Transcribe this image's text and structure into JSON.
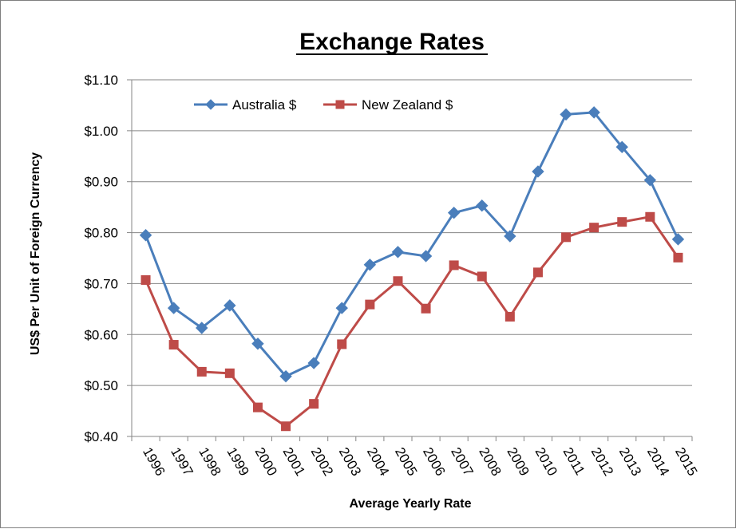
{
  "chart_data": {
    "type": "line",
    "title": "Exchange Rates",
    "xlabel": "Average Yearly Rate",
    "ylabel": "US$ Per Unit of Foreign Currency",
    "ylim": [
      0.4,
      1.1
    ],
    "yticks": [
      0.4,
      0.5,
      0.6,
      0.7,
      0.8,
      0.9,
      1.0,
      1.1
    ],
    "ytick_labels": [
      "$0.40",
      "$0.50",
      "$0.60",
      "$0.70",
      "$0.80",
      "$0.90",
      "$1.00",
      "$1.10"
    ],
    "grid": true,
    "legend_position": "top-left",
    "categories": [
      "1996",
      "1997",
      "1998",
      "1999",
      "2000",
      "2001",
      "2002",
      "2003",
      "2004",
      "2005",
      "2006",
      "2007",
      "2008",
      "2009",
      "2010",
      "2011",
      "2012",
      "2013",
      "2014",
      "2015"
    ],
    "series": [
      {
        "name": "Australia $",
        "color": "#4a7ebb",
        "marker": "diamond",
        "values": [
          0.795,
          0.652,
          0.613,
          0.657,
          0.582,
          0.518,
          0.544,
          0.652,
          0.737,
          0.762,
          0.754,
          0.839,
          0.853,
          0.793,
          0.92,
          1.032,
          1.036,
          0.968,
          0.903,
          0.787
        ]
      },
      {
        "name": "New Zealand $",
        "color": "#be4b48",
        "marker": "square",
        "values": [
          0.707,
          0.58,
          0.527,
          0.524,
          0.457,
          0.42,
          0.464,
          0.581,
          0.659,
          0.705,
          0.651,
          0.736,
          0.714,
          0.635,
          0.722,
          0.791,
          0.81,
          0.821,
          0.831,
          0.751
        ]
      }
    ]
  }
}
